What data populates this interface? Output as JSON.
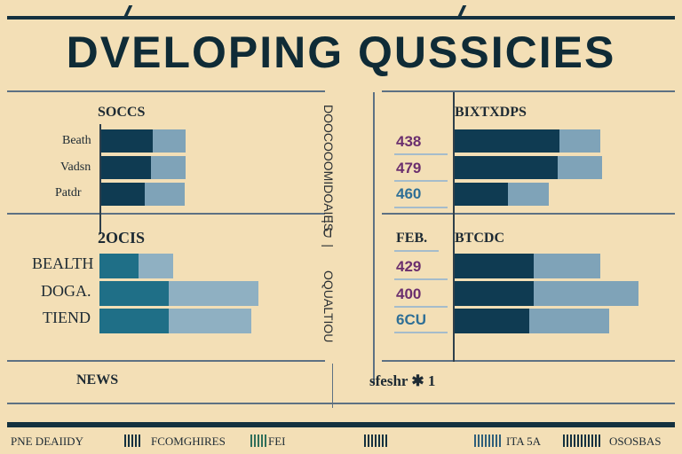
{
  "header": {
    "title": "DVELOPING QUSSICIES"
  },
  "panels": {
    "top_left": {
      "heading": "SOCCS",
      "labels": [
        "Beath",
        "Vadsn",
        "Patdr"
      ]
    },
    "bottom_left": {
      "heading": "2OCIS",
      "labels": [
        "BEALTH",
        "DOGA.",
        "TIEND"
      ]
    },
    "top_right": {
      "heading": "BIXTXDPS",
      "numbers": [
        "438",
        "479",
        "460"
      ]
    },
    "bottom_right": {
      "heading_left": "FEB.",
      "heading": "BTCDC",
      "numbers": [
        "429",
        "400",
        "6CU"
      ]
    }
  },
  "footer": {
    "news": "NEWS",
    "right_text": "sfeshr ✱ 1"
  },
  "side_text": {
    "vertical_1": "DOOCOOOMIDOAIES",
    "vertical_2": "OQUALTIOU",
    "separator": "| ᗡ |"
  },
  "ticker": {
    "left": "PNE DEAIIDY",
    "center_left": "FCOMGHIRES",
    "center": "FEI",
    "right": "ITA 5A",
    "far_right": "OSOSBAS"
  },
  "colors": {
    "dark": "#0f3b52",
    "light": "#7fa3b8",
    "teal": "#1f6f87",
    "pale": "#8fb0c2",
    "num_purple": "#6b2f6e",
    "num_blue": "#2f6f96"
  },
  "chart_data": [
    {
      "type": "bar",
      "orientation": "horizontal",
      "title": "SOCCS",
      "categories": [
        "Beath",
        "Vadsn",
        "Patdr"
      ],
      "series": [
        {
          "values": [
            60,
            58,
            51
          ]
        },
        {
          "values": [
            37,
            39,
            45
          ]
        }
      ],
      "xlim": [
        0,
        100
      ]
    },
    {
      "type": "bar",
      "orientation": "horizontal",
      "title": "2OCIS",
      "categories": [
        "BEALTH",
        "DOGA.",
        "TIEND"
      ],
      "series": [
        {
          "values": [
            44,
            78,
            78
          ]
        },
        {
          "values": [
            39,
            101,
            93
          ]
        }
      ],
      "xlim": [
        0,
        180
      ]
    },
    {
      "type": "bar",
      "orientation": "horizontal",
      "title": "BIXTXDPS",
      "categories": [
        "438",
        "479",
        "460"
      ],
      "series": [
        {
          "values": [
            118,
            116,
            60
          ]
        },
        {
          "values": [
            46,
            50,
            46
          ]
        }
      ],
      "xlim": [
        0,
        210
      ]
    },
    {
      "type": "bar",
      "orientation": "horizontal",
      "title": "BTCDC",
      "categories": [
        "429",
        "400",
        "6CU"
      ],
      "series": [
        {
          "values": [
            89,
            89,
            84
          ]
        },
        {
          "values": [
            75,
            118,
            90
          ]
        }
      ],
      "xlim": [
        0,
        210
      ]
    }
  ]
}
